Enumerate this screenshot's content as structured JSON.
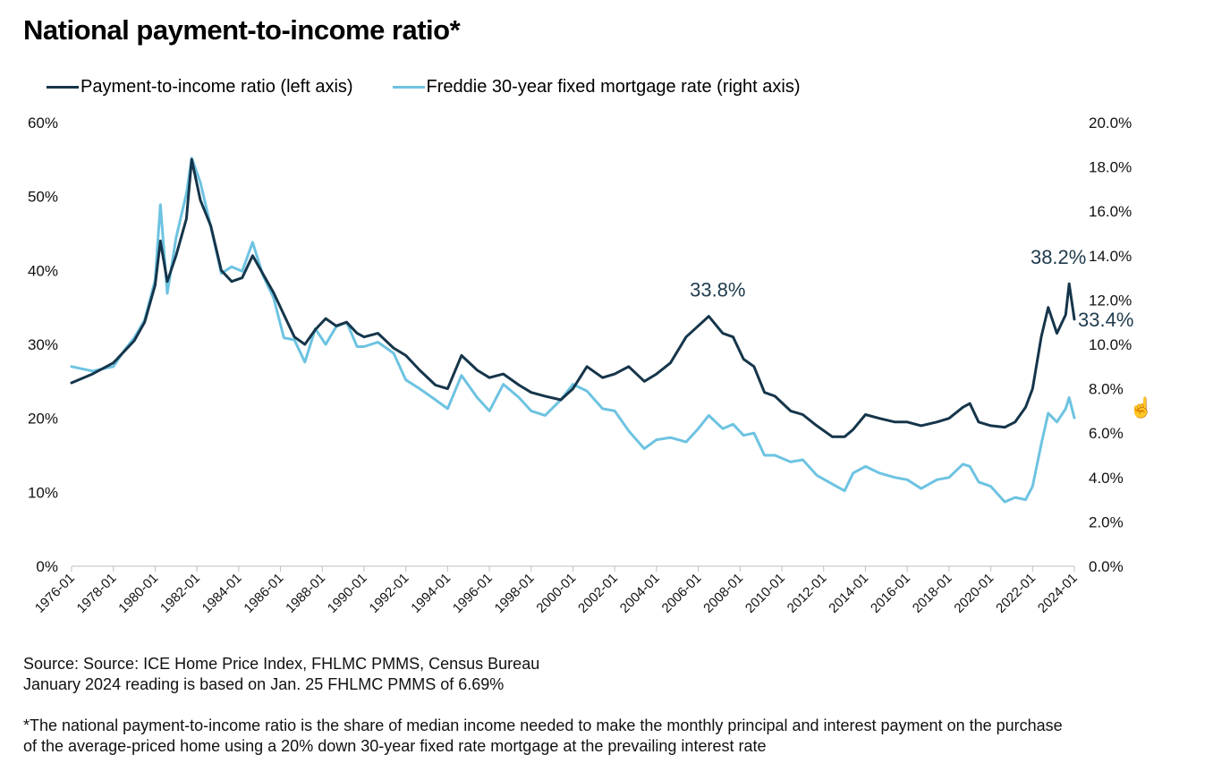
{
  "title": "National payment-to-income ratio*",
  "legend": [
    {
      "label": "Payment-to-income ratio (left axis)",
      "color": "#15354a"
    },
    {
      "label": "Freddie 30-year fixed mortgage rate (right axis)",
      "color": "#6dc3e1"
    }
  ],
  "footer": {
    "source": "Source: Source: ICE Home Price Index, FHLMC PMMS, Census Bureau",
    "note": "January 2024 reading is based on Jan. 25 FHLMC PMMS of 6.69%",
    "footnote1": "*The national payment-to-income ratio is the share of median income needed to make the monthly principal and interest payment on the purchase",
    "footnote2": "of the average-priced home using a 20% down 30-year fixed rate mortgage at the prevailing interest rate"
  },
  "cursor_icon": "hand-pointer-icon",
  "chart_data": {
    "type": "line",
    "x_ticks": [
      "1976-01",
      "1978-01",
      "1980-01",
      "1982-01",
      "1984-01",
      "1986-01",
      "1988-01",
      "1990-01",
      "1992-01",
      "1994-01",
      "1996-01",
      "1998-01",
      "2000-01",
      "2002-01",
      "2004-01",
      "2006-01",
      "2008-01",
      "2010-01",
      "2012-01",
      "2014-01",
      "2016-01",
      "2018-01",
      "2020-01",
      "2022-01",
      "2024-01"
    ],
    "left_axis": {
      "min": 0,
      "max": 60,
      "ticks": [
        "0%",
        "10%",
        "20%",
        "30%",
        "40%",
        "50%",
        "60%"
      ]
    },
    "right_axis": {
      "min": 0,
      "max": 20,
      "ticks": [
        "0.0%",
        "2.0%",
        "4.0%",
        "6.0%",
        "8.0%",
        "10.0%",
        "12.0%",
        "14.0%",
        "16.0%",
        "18.0%",
        "20.0%"
      ]
    },
    "series": [
      {
        "name": "Payment-to-income ratio (left axis)",
        "axis": "left",
        "color": "#15354a",
        "points": [
          [
            "1976-01",
            24.8
          ],
          [
            "1977-01",
            26.0
          ],
          [
            "1978-01",
            27.5
          ],
          [
            "1978-07",
            29.0
          ],
          [
            "1979-01",
            30.5
          ],
          [
            "1979-07",
            33.0
          ],
          [
            "1980-01",
            38.0
          ],
          [
            "1980-04",
            44.0
          ],
          [
            "1980-08",
            38.5
          ],
          [
            "1981-01",
            42.0
          ],
          [
            "1981-07",
            47.0
          ],
          [
            "1981-10",
            55.0
          ],
          [
            "1982-03",
            49.5
          ],
          [
            "1982-09",
            46.0
          ],
          [
            "1983-03",
            40.0
          ],
          [
            "1983-09",
            38.5
          ],
          [
            "1984-03",
            39.0
          ],
          [
            "1984-09",
            42.0
          ],
          [
            "1985-03",
            39.5
          ],
          [
            "1985-09",
            37.0
          ],
          [
            "1986-03",
            34.0
          ],
          [
            "1986-09",
            31.0
          ],
          [
            "1987-03",
            30.0
          ],
          [
            "1987-09",
            32.0
          ],
          [
            "1988-03",
            33.5
          ],
          [
            "1988-09",
            32.5
          ],
          [
            "1989-03",
            33.0
          ],
          [
            "1989-09",
            31.5
          ],
          [
            "1990-01",
            31.0
          ],
          [
            "1990-09",
            31.5
          ],
          [
            "1991-06",
            29.5
          ],
          [
            "1992-01",
            28.5
          ],
          [
            "1992-09",
            26.5
          ],
          [
            "1993-06",
            24.5
          ],
          [
            "1994-01",
            24.0
          ],
          [
            "1994-09",
            28.5
          ],
          [
            "1995-06",
            26.5
          ],
          [
            "1996-01",
            25.5
          ],
          [
            "1996-09",
            26.0
          ],
          [
            "1997-06",
            24.5
          ],
          [
            "1998-01",
            23.5
          ],
          [
            "1998-09",
            23.0
          ],
          [
            "1999-06",
            22.5
          ],
          [
            "2000-01",
            24.0
          ],
          [
            "2000-09",
            27.0
          ],
          [
            "2001-06",
            25.5
          ],
          [
            "2002-01",
            26.0
          ],
          [
            "2002-09",
            27.0
          ],
          [
            "2003-06",
            25.0
          ],
          [
            "2004-01",
            26.0
          ],
          [
            "2004-09",
            27.5
          ],
          [
            "2005-06",
            31.0
          ],
          [
            "2006-01",
            32.5
          ],
          [
            "2006-07",
            33.8
          ],
          [
            "2007-03",
            31.5
          ],
          [
            "2007-09",
            31.0
          ],
          [
            "2008-03",
            28.0
          ],
          [
            "2008-09",
            27.0
          ],
          [
            "2009-03",
            23.5
          ],
          [
            "2009-09",
            23.0
          ],
          [
            "2010-06",
            21.0
          ],
          [
            "2011-01",
            20.5
          ],
          [
            "2011-09",
            19.0
          ],
          [
            "2012-06",
            17.5
          ],
          [
            "2013-01",
            17.5
          ],
          [
            "2013-06",
            18.5
          ],
          [
            "2014-01",
            20.5
          ],
          [
            "2014-09",
            20.0
          ],
          [
            "2015-06",
            19.5
          ],
          [
            "2016-01",
            19.5
          ],
          [
            "2016-09",
            19.0
          ],
          [
            "2017-06",
            19.5
          ],
          [
            "2018-01",
            20.0
          ],
          [
            "2018-09",
            21.5
          ],
          [
            "2019-01",
            22.0
          ],
          [
            "2019-06",
            19.5
          ],
          [
            "2020-01",
            19.0
          ],
          [
            "2020-09",
            18.8
          ],
          [
            "2021-03",
            19.5
          ],
          [
            "2021-09",
            21.5
          ],
          [
            "2022-01",
            24.0
          ],
          [
            "2022-06",
            31.0
          ],
          [
            "2022-10",
            35.0
          ],
          [
            "2023-03",
            31.5
          ],
          [
            "2023-08",
            34.0
          ],
          [
            "2023-10",
            38.2
          ],
          [
            "2024-01",
            33.4
          ]
        ]
      },
      {
        "name": "Freddie 30-year fixed mortgage rate (right axis)",
        "axis": "right",
        "color": "#6dc3e1",
        "points": [
          [
            "1976-01",
            9.0
          ],
          [
            "1977-01",
            8.8
          ],
          [
            "1978-01",
            9.0
          ],
          [
            "1978-07",
            9.7
          ],
          [
            "1979-01",
            10.3
          ],
          [
            "1979-07",
            11.1
          ],
          [
            "1980-01",
            12.9
          ],
          [
            "1980-04",
            16.3
          ],
          [
            "1980-08",
            12.3
          ],
          [
            "1981-01",
            14.8
          ],
          [
            "1981-07",
            16.8
          ],
          [
            "1981-10",
            18.4
          ],
          [
            "1982-03",
            17.3
          ],
          [
            "1982-09",
            15.3
          ],
          [
            "1983-03",
            13.2
          ],
          [
            "1983-09",
            13.5
          ],
          [
            "1984-03",
            13.3
          ],
          [
            "1984-09",
            14.6
          ],
          [
            "1985-03",
            13.1
          ],
          [
            "1985-09",
            12.1
          ],
          [
            "1986-03",
            10.3
          ],
          [
            "1986-09",
            10.2
          ],
          [
            "1987-03",
            9.2
          ],
          [
            "1987-09",
            10.7
          ],
          [
            "1988-03",
            10.0
          ],
          [
            "1988-09",
            10.8
          ],
          [
            "1989-03",
            11.0
          ],
          [
            "1989-09",
            9.9
          ],
          [
            "1990-01",
            9.9
          ],
          [
            "1990-09",
            10.1
          ],
          [
            "1991-06",
            9.6
          ],
          [
            "1992-01",
            8.4
          ],
          [
            "1992-09",
            8.0
          ],
          [
            "1993-06",
            7.5
          ],
          [
            "1994-01",
            7.1
          ],
          [
            "1994-09",
            8.6
          ],
          [
            "1995-06",
            7.6
          ],
          [
            "1996-01",
            7.0
          ],
          [
            "1996-09",
            8.2
          ],
          [
            "1997-06",
            7.6
          ],
          [
            "1998-01",
            7.0
          ],
          [
            "1998-09",
            6.8
          ],
          [
            "1999-06",
            7.5
          ],
          [
            "2000-01",
            8.2
          ],
          [
            "2000-09",
            7.9
          ],
          [
            "2001-06",
            7.1
          ],
          [
            "2002-01",
            7.0
          ],
          [
            "2002-09",
            6.1
          ],
          [
            "2003-06",
            5.3
          ],
          [
            "2004-01",
            5.7
          ],
          [
            "2004-09",
            5.8
          ],
          [
            "2005-06",
            5.6
          ],
          [
            "2006-01",
            6.2
          ],
          [
            "2006-07",
            6.8
          ],
          [
            "2007-03",
            6.2
          ],
          [
            "2007-09",
            6.4
          ],
          [
            "2008-03",
            5.9
          ],
          [
            "2008-09",
            6.0
          ],
          [
            "2009-03",
            5.0
          ],
          [
            "2009-09",
            5.0
          ],
          [
            "2010-06",
            4.7
          ],
          [
            "2011-01",
            4.8
          ],
          [
            "2011-09",
            4.1
          ],
          [
            "2012-06",
            3.7
          ],
          [
            "2013-01",
            3.4
          ],
          [
            "2013-06",
            4.2
          ],
          [
            "2014-01",
            4.5
          ],
          [
            "2014-09",
            4.2
          ],
          [
            "2015-06",
            4.0
          ],
          [
            "2016-01",
            3.9
          ],
          [
            "2016-09",
            3.5
          ],
          [
            "2017-06",
            3.9
          ],
          [
            "2018-01",
            4.0
          ],
          [
            "2018-09",
            4.6
          ],
          [
            "2019-01",
            4.5
          ],
          [
            "2019-06",
            3.8
          ],
          [
            "2020-01",
            3.6
          ],
          [
            "2020-09",
            2.9
          ],
          [
            "2021-03",
            3.1
          ],
          [
            "2021-09",
            3.0
          ],
          [
            "2022-01",
            3.6
          ],
          [
            "2022-06",
            5.5
          ],
          [
            "2022-10",
            6.9
          ],
          [
            "2023-03",
            6.5
          ],
          [
            "2023-08",
            7.1
          ],
          [
            "2023-10",
            7.6
          ],
          [
            "2024-01",
            6.69
          ]
        ]
      }
    ],
    "annotations": [
      {
        "text": "33.8%",
        "date": "2006-07",
        "value": 33.8,
        "axis": "left"
      },
      {
        "text": "38.2%",
        "date": "2023-10",
        "value": 38.2,
        "axis": "left"
      },
      {
        "text": "33.4%",
        "date": "2024-01",
        "value": 33.4,
        "axis": "left"
      }
    ],
    "grid": false,
    "legend_position": "top-left"
  }
}
